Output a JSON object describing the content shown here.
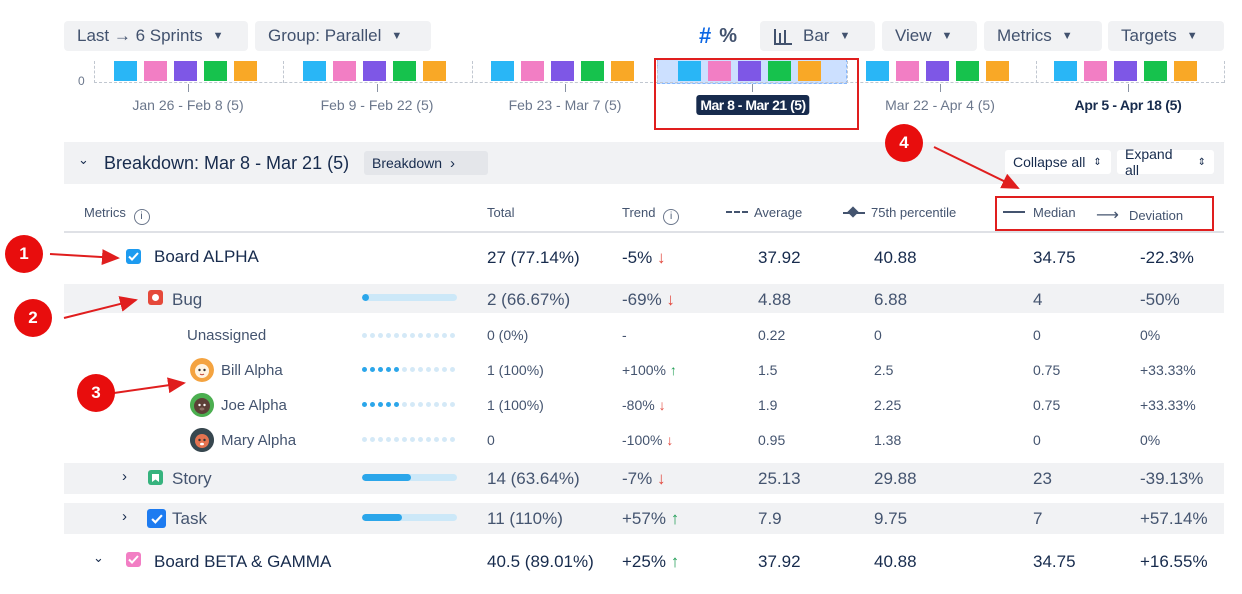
{
  "toolbar": {
    "range": "Last → 6 Sprints",
    "group": "Group: Parallel",
    "hash": "#",
    "percent": "%",
    "chart_type": "Bar",
    "view": "View",
    "metrics": "Metrics",
    "targets": "Targets"
  },
  "chart": {
    "zero_label": "0",
    "periods": [
      "Jan 26 - Feb 8 (5)",
      "Feb 9 - Feb 22 (5)",
      "Feb 23 - Mar 7 (5)",
      "Mar 8 - Mar 21 (5)",
      "Mar 22 - Apr 4 (5)",
      "Apr 5 - Apr 18 (5)"
    ],
    "selected_period": "Mar 8 - Mar 21 (5)",
    "bar_colors": [
      "#29b6f6",
      "#f27ec4",
      "#7e57e6",
      "#16c24d",
      "#f9a826"
    ]
  },
  "annotations": [
    "1",
    "2",
    "3",
    "4"
  ],
  "breakdown": {
    "title": "Breakdown: Mar 8 - Mar 21 (5)",
    "breakdown_button": "Breakdown",
    "collapse_all": "Collapse all",
    "expand_all": "Expand all"
  },
  "columns": {
    "metrics": "Metrics",
    "total": "Total",
    "trend": "Trend",
    "average": "Average",
    "p75": "75th percentile",
    "median": "Median",
    "deviation": "Deviation"
  },
  "rows": [
    {
      "name": "Board ALPHA",
      "total": "27 (77.14%)",
      "trend": "-5%",
      "avg": "37.92",
      "p75": "40.88",
      "median": "34.75",
      "dev": "-22.3%"
    },
    {
      "name": "Bug",
      "total": "2 (66.67%)",
      "trend": "-69%",
      "avg": "4.88",
      "p75": "6.88",
      "median": "4",
      "dev": "-50%",
      "progress": 0.07
    },
    {
      "name": "Unassigned",
      "total": "0 (0%)",
      "trend": "-",
      "avg": "0.22",
      "p75": "0",
      "median": "0",
      "dev": "0%"
    },
    {
      "name": "Bill Alpha",
      "total": "1 (100%)",
      "trend": "+100%",
      "avg": "1.5",
      "p75": "2.5",
      "median": "0.75",
      "dev": "+33.33%"
    },
    {
      "name": "Joe Alpha",
      "total": "1 (100%)",
      "trend": "-80%",
      "avg": "1.9",
      "p75": "2.25",
      "median": "0.75",
      "dev": "+33.33%"
    },
    {
      "name": "Mary Alpha",
      "total": "0",
      "trend": "-100%",
      "avg": "0.95",
      "p75": "1.38",
      "median": "0",
      "dev": "0%"
    },
    {
      "name": "Story",
      "total": "14 (63.64%)",
      "trend": "-7%",
      "avg": "25.13",
      "p75": "29.88",
      "median": "23",
      "dev": "-39.13%",
      "progress": 0.52
    },
    {
      "name": "Task",
      "total": "11 (110%)",
      "trend": "+57%",
      "avg": "7.9",
      "p75": "9.75",
      "median": "7",
      "dev": "+57.14%",
      "progress": 0.42
    },
    {
      "name": "Board BETA & GAMMA",
      "total": "40.5 (89.01%)",
      "trend": "+25%",
      "avg": "37.92",
      "p75": "40.88",
      "median": "34.75",
      "dev": "+16.55%"
    }
  ],
  "icons": {
    "info": "info-icon",
    "down_arrow": "↓",
    "up_arrow": "↑"
  }
}
